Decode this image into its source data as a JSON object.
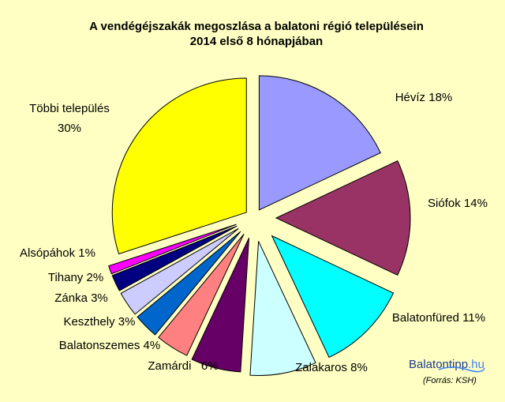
{
  "chart_data": {
    "type": "pie",
    "title_line1": "A vendégéjszakák megoszlása a balatoni régió településein",
    "title_line2": "2014 első 8 hónapjában",
    "slices": [
      {
        "label": "Hévíz 18%",
        "value": 18,
        "color": "#9999ff"
      },
      {
        "label": "Siófok 14%",
        "value": 14,
        "color": "#993366"
      },
      {
        "label": "Balatonfüred 11%",
        "value": 11,
        "color": "#00ffff"
      },
      {
        "label": "Zalakaros 8%",
        "value": 8,
        "color": "#ccffff"
      },
      {
        "label": "Zamárdi   6%",
        "value": 6,
        "color": "#660066"
      },
      {
        "label": "Balatonszemes 4%",
        "value": 4,
        "color": "#ff8080"
      },
      {
        "label": "Keszthely 3%",
        "value": 3,
        "color": "#0066cc"
      },
      {
        "label": "Zánka 3%",
        "value": 3,
        "color": "#ccccff"
      },
      {
        "label": "Tihany 2%",
        "value": 2,
        "color": "#000080"
      },
      {
        "label": "Alsópáhok 1%",
        "value": 1,
        "color": "#ff00ff"
      },
      {
        "label": "Többi település 30%",
        "value": 30,
        "color": "#ffff00"
      }
    ]
  },
  "logo": {
    "part1": "Balatontipp",
    "part2": ".hu"
  },
  "source": "(Forrás: KSH)"
}
